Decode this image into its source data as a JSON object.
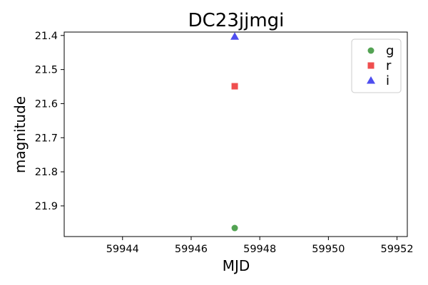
{
  "chart_data": {
    "type": "scatter",
    "title": "DC23jjmgi",
    "xlabel": "MJD",
    "ylabel": "magnitude",
    "xlim": [
      59942.3,
      59952.3
    ],
    "ylim": [
      21.39,
      21.99
    ],
    "y_inverted": true,
    "x_ticks": [
      59944,
      59946,
      59948,
      59950,
      59952
    ],
    "y_ticks": [
      21.4,
      21.5,
      21.6,
      21.7,
      21.8,
      21.9
    ],
    "x_tick_labels": [
      "59944",
      "59946",
      "59948",
      "59950",
      "59952"
    ],
    "y_tick_labels": [
      "21.4",
      "21.5",
      "21.6",
      "21.7",
      "21.8",
      "21.9"
    ],
    "grid": false,
    "legend_position": "top-right",
    "series": [
      {
        "name": "g",
        "marker": "circle",
        "color": "#4a9e4a",
        "x": [
          59947.27
        ],
        "y": [
          21.965
        ]
      },
      {
        "name": "r",
        "marker": "square",
        "color": "#ee4444",
        "x": [
          59947.27
        ],
        "y": [
          21.549
        ]
      },
      {
        "name": "i",
        "marker": "triangle",
        "color": "#4444ee",
        "x": [
          59947.27
        ],
        "y": [
          21.403
        ]
      }
    ]
  }
}
